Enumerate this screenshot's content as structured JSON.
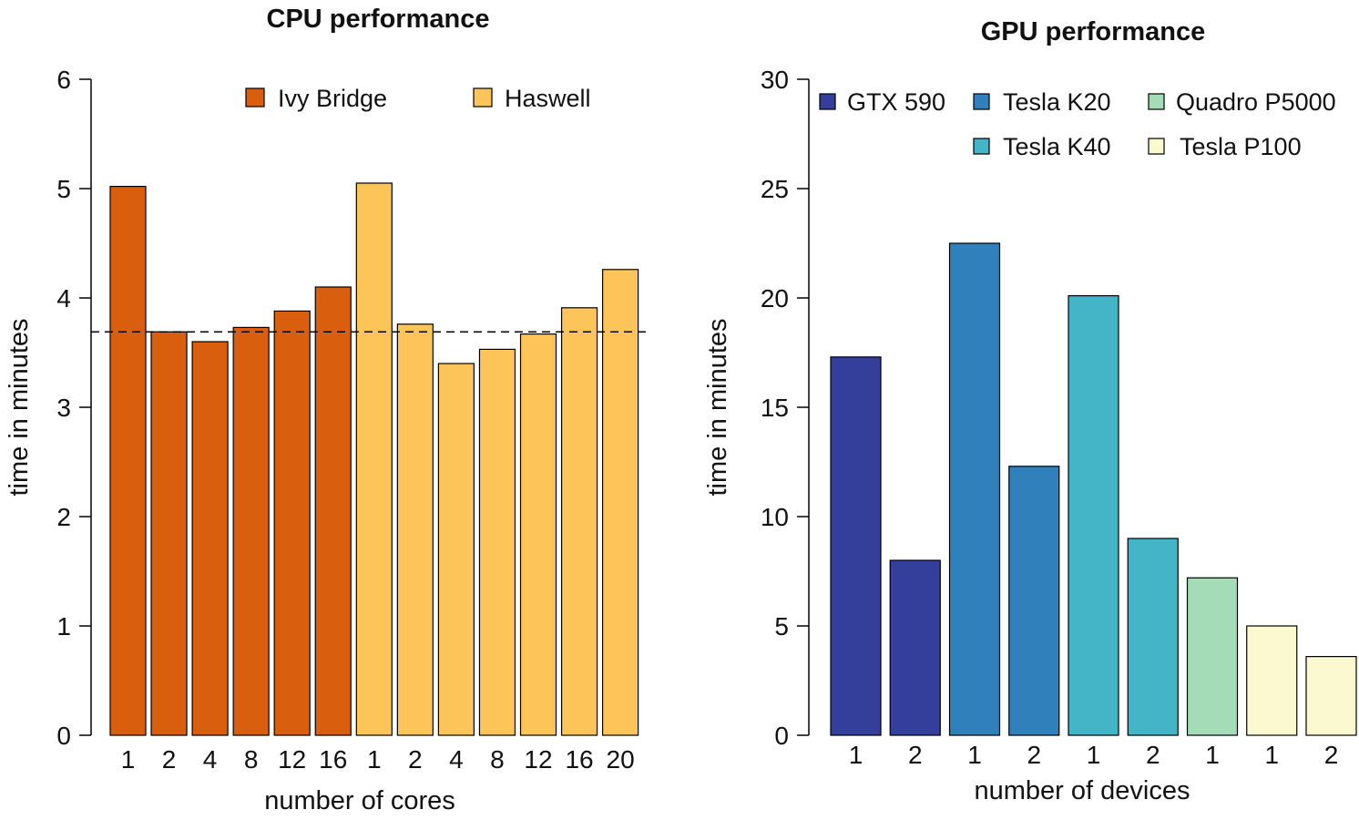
{
  "chart_data": [
    {
      "type": "bar",
      "title": "CPU performance",
      "xlabel": "number of cores",
      "ylabel": "time in minutes",
      "ylim": [
        0,
        6
      ],
      "yticks": [
        "0",
        "1",
        "2",
        "3",
        "4",
        "5",
        "6"
      ],
      "reference_line": 3.69,
      "legend": {
        "placement": "top",
        "entries": [
          {
            "name": "Ivy Bridge",
            "color": "#d95f0e"
          },
          {
            "name": "Haswell",
            "color": "#fdc45a"
          }
        ]
      },
      "bars": [
        {
          "series": "Ivy Bridge",
          "label": "1",
          "value": 5.02
        },
        {
          "series": "Ivy Bridge",
          "label": "2",
          "value": 3.69
        },
        {
          "series": "Ivy Bridge",
          "label": "4",
          "value": 3.6
        },
        {
          "series": "Ivy Bridge",
          "label": "8",
          "value": 3.73
        },
        {
          "series": "Ivy Bridge",
          "label": "12",
          "value": 3.88
        },
        {
          "series": "Ivy Bridge",
          "label": "16",
          "value": 4.1
        },
        {
          "series": "Haswell",
          "label": "1",
          "value": 5.05
        },
        {
          "series": "Haswell",
          "label": "2",
          "value": 3.76
        },
        {
          "series": "Haswell",
          "label": "4",
          "value": 3.4
        },
        {
          "series": "Haswell",
          "label": "8",
          "value": 3.53
        },
        {
          "series": "Haswell",
          "label": "12",
          "value": 3.67
        },
        {
          "series": "Haswell",
          "label": "16",
          "value": 3.91
        },
        {
          "series": "Haswell",
          "label": "20",
          "value": 4.26
        }
      ]
    },
    {
      "type": "bar",
      "title": "GPU performance",
      "xlabel": "number of devices",
      "ylabel": "time in minutes",
      "ylim": [
        0,
        30
      ],
      "yticks": [
        "0",
        "5",
        "10",
        "15",
        "20",
        "25",
        "30"
      ],
      "legend": {
        "placement": "top",
        "entries": [
          {
            "name": "GTX 590",
            "color": "#343f9c"
          },
          {
            "name": "Tesla K20",
            "color": "#2f80bb"
          },
          {
            "name": "Quadro P5000",
            "color": "#a3dcb7"
          },
          {
            "name": "Tesla K40",
            "color": "#43b5c6"
          },
          {
            "name": "Tesla P100",
            "color": "#fbf9cf"
          }
        ]
      },
      "bars": [
        {
          "series": "GTX 590",
          "label": "1",
          "value": 17.3
        },
        {
          "series": "GTX 590",
          "label": "2",
          "value": 8.0
        },
        {
          "series": "Tesla K20",
          "label": "1",
          "value": 22.5
        },
        {
          "series": "Tesla K20",
          "label": "2",
          "value": 12.3
        },
        {
          "series": "Tesla K40",
          "label": "1",
          "value": 20.1
        },
        {
          "series": "Tesla K40",
          "label": "2",
          "value": 9.0
        },
        {
          "series": "Quadro P5000",
          "label": "1",
          "value": 7.2
        },
        {
          "series": "Tesla P100",
          "label": "1",
          "value": 5.0
        },
        {
          "series": "Tesla P100",
          "label": "2",
          "value": 3.6
        }
      ]
    }
  ]
}
